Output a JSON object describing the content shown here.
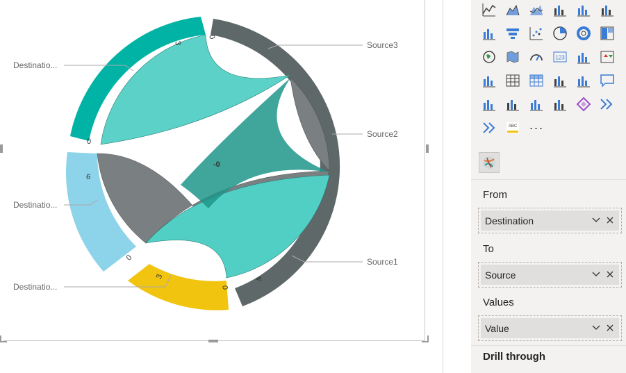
{
  "chord_chart": {
    "labels": {
      "source3": "Source3",
      "source2": "Source2",
      "source1": "Source1",
      "dest_top": "Destinatio...",
      "dest_mid": "Destinatio...",
      "dest_bottom": "Destinatio..."
    },
    "ticks": {
      "dest_top_zero": "0",
      "dest_top_value": "3",
      "source3_zero": "0",
      "source1_value": "4",
      "source1_zero": "0",
      "dest_bottom_value": "3",
      "dest_bottom_zero": "0",
      "dest_mid_zero": "0",
      "dest_mid_value": "6",
      "center": "-0"
    },
    "colors": {
      "source_arc": "#5f6869",
      "dest_top_arc": "#00b3a5",
      "dest_mid_arc": "#8dd3ea",
      "dest_bottom_arc": "#f1c40f",
      "chord_light": "#52cfc4",
      "chord_grey": "#7a8081",
      "chord_dark": "#2c9d92"
    }
  },
  "pane": {
    "visual_icons": [
      "line-chart-icon",
      "area-chart-icon",
      "stacked-area-icon",
      "line-clustered-column-icon",
      "line-stacked-column-icon",
      "ribbon-chart-icon",
      "waterfall-icon",
      "funnel-icon",
      "scatter-icon",
      "pie-chart-icon",
      "donut-chart-icon",
      "treemap-icon",
      "map-icon",
      "filled-map-icon",
      "gauge-icon",
      "card-icon",
      "multi-row-card-icon",
      "kpi-icon",
      "slicer-icon",
      "table-icon",
      "matrix-icon",
      "key-influencers-icon",
      "decomposition-tree-icon",
      "qa-icon",
      "smart-narrative-icon",
      "metrics-icon",
      "paginated-report-icon",
      "html-content-icon",
      "power-apps-icon",
      "power-automate-icon",
      "power-automate-flow-icon",
      "word-cloud-icon"
    ],
    "more_label": "···",
    "wells": [
      {
        "title": "From",
        "field": "Destination"
      },
      {
        "title": "To",
        "field": "Source"
      },
      {
        "title": "Values",
        "field": "Value"
      }
    ],
    "drill_through": "Drill through"
  }
}
